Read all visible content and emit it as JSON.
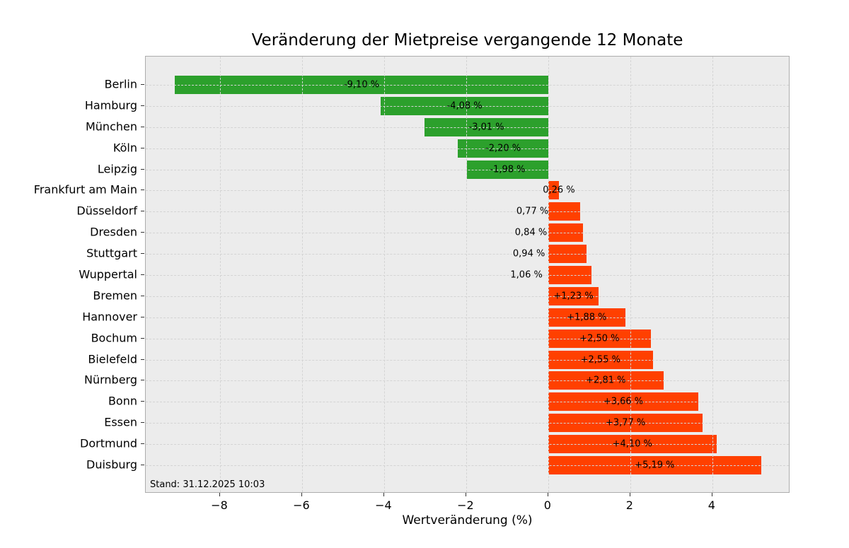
{
  "chart_data": {
    "type": "bar",
    "orientation": "horizontal",
    "title": "Veränderung der Mietpreise vergangende 12 Monate",
    "xlabel": "Wertveränderung (%)",
    "ylabel": "",
    "categories": [
      "Berlin",
      "Hamburg",
      "München",
      "Köln",
      "Leipzig",
      "Frankfurt am Main",
      "Düsseldorf",
      "Dresden",
      "Stuttgart",
      "Wuppertal",
      "Bremen",
      "Hannover",
      "Bochum",
      "Bielefeld",
      "Nürnberg",
      "Bonn",
      "Essen",
      "Dortmund",
      "Duisburg"
    ],
    "values": [
      -9.1,
      -4.08,
      -3.01,
      -2.2,
      -1.98,
      0.26,
      0.77,
      0.84,
      0.94,
      1.06,
      1.23,
      1.88,
      2.5,
      2.55,
      2.81,
      3.66,
      3.77,
      4.1,
      5.19
    ],
    "bar_labels": [
      "-9,10 %",
      "-4,08 %",
      "-3,01 %",
      "-2,20 %",
      "-1,98 %",
      "0,26 %",
      "0,77 %",
      "0,84 %",
      "0,94 %",
      "1,06 %",
      "+1,23 %",
      "+1,88 %",
      "+2,50 %",
      "+2,55 %",
      "+2,81 %",
      "+3,66 %",
      "+3,77 %",
      "+4,10 %",
      "+5,19 %"
    ],
    "x_ticks": [
      -8,
      -6,
      -4,
      -2,
      0,
      2,
      4
    ],
    "x_tick_labels": [
      "−8",
      "−6",
      "−4",
      "−2",
      "0",
      "2",
      "4"
    ],
    "xlim": [
      -9.81,
      5.9
    ],
    "grid": true,
    "legend": false,
    "annotation": "Stand: 31.12.2025 10:03",
    "colors": {
      "negative_bar": "#2ca02c",
      "positive_bar": "#ff4000",
      "plot_background": "#ececec",
      "gridline": "#d4d4d4",
      "axis_border": "#adadad",
      "text": "#000000"
    }
  }
}
